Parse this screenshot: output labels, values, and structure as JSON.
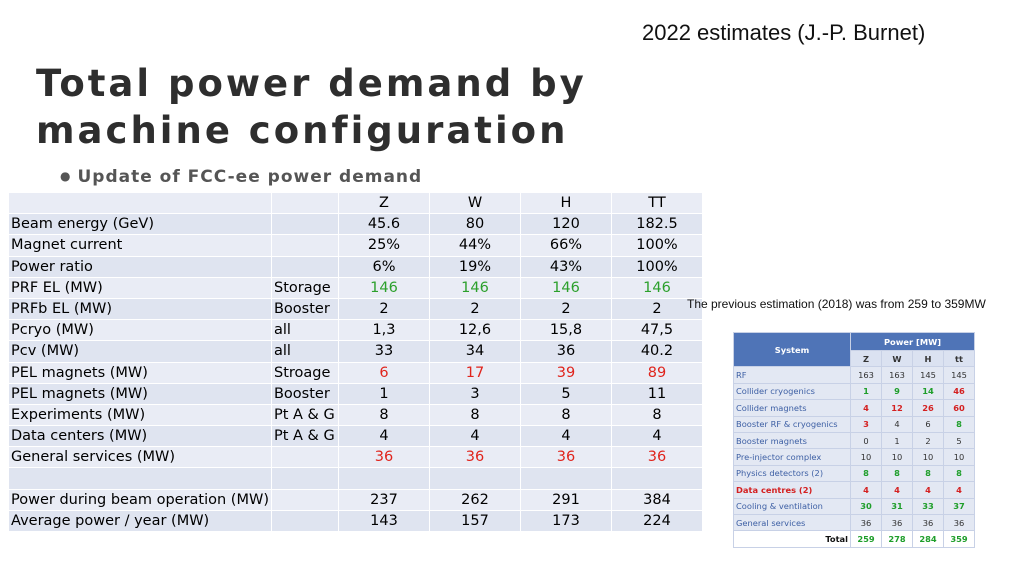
{
  "header_note": "2022 estimates (J.-P. Burnet)",
  "title": "Total power demand by machine configuration",
  "bullet": "Update of FCC-ee power demand",
  "main_table": {
    "columns": [
      "Z",
      "W",
      "H",
      "TT"
    ],
    "rows": [
      {
        "label": "Beam energy (GeV)",
        "sub": "",
        "values": [
          "45.6",
          "80",
          "120",
          "182.5"
        ],
        "color": ""
      },
      {
        "label": "Magnet current",
        "sub": "",
        "values": [
          "25%",
          "44%",
          "66%",
          "100%"
        ],
        "color": ""
      },
      {
        "label": "Power ratio",
        "sub": "",
        "values": [
          "6%",
          "19%",
          "43%",
          "100%"
        ],
        "color": ""
      },
      {
        "label": "PRF EL (MW)",
        "sub": "Storage",
        "values": [
          "146",
          "146",
          "146",
          "146"
        ],
        "color": "green"
      },
      {
        "label": "PRFb EL (MW)",
        "sub": "Booster",
        "values": [
          "2",
          "2",
          "2",
          "2"
        ],
        "color": ""
      },
      {
        "label": "Pcryo (MW)",
        "sub": "all",
        "values": [
          "1,3",
          "12,6",
          "15,8",
          "47,5"
        ],
        "color": ""
      },
      {
        "label": "Pcv (MW)",
        "sub": "all",
        "values": [
          "33",
          "34",
          "36",
          "40.2"
        ],
        "color": ""
      },
      {
        "label": "PEL magnets (MW)",
        "sub": "Stroage",
        "values": [
          "6",
          "17",
          "39",
          "89"
        ],
        "color": "red"
      },
      {
        "label": "PEL magnets (MW)",
        "sub": "Booster",
        "values": [
          "1",
          "3",
          "5",
          "11"
        ],
        "color": ""
      },
      {
        "label": "Experiments (MW)",
        "sub": "Pt A & G",
        "values": [
          "8",
          "8",
          "8",
          "8"
        ],
        "color": ""
      },
      {
        "label": "Data centers (MW)",
        "sub": "Pt A & G",
        "values": [
          "4",
          "4",
          "4",
          "4"
        ],
        "color": ""
      },
      {
        "label": "General services (MW)",
        "sub": "",
        "values": [
          "36",
          "36",
          "36",
          "36"
        ],
        "color": "red"
      },
      {
        "label": "",
        "sub": "",
        "values": [
          "",
          "",
          "",
          ""
        ],
        "color": ""
      },
      {
        "label": "Power during beam operation (MW)",
        "sub": "",
        "values": [
          "237",
          "262",
          "291",
          "384"
        ],
        "color": ""
      },
      {
        "label": "Average power / year (MW)",
        "sub": "",
        "values": [
          "143",
          "157",
          "173",
          "224"
        ],
        "color": ""
      }
    ]
  },
  "side_note": "The previous estimation (2018) was from 259 to 359MW",
  "old_table": {
    "system_header": "System",
    "power_header": "Power [MW]",
    "columns": [
      "Z",
      "W",
      "H",
      "tt"
    ],
    "rows": [
      {
        "label": "RF",
        "values": [
          "163",
          "163",
          "145",
          "145"
        ],
        "style": [
          "",
          "",
          "",
          ""
        ]
      },
      {
        "label": "Collider cryogenics",
        "values": [
          "1",
          "9",
          "14",
          "46"
        ],
        "style": [
          "g",
          "g",
          "g",
          "r"
        ]
      },
      {
        "label": "Collider magnets",
        "values": [
          "4",
          "12",
          "26",
          "60"
        ],
        "style": [
          "r",
          "r",
          "r",
          "r"
        ]
      },
      {
        "label": "Booster RF & cryogenics",
        "values": [
          "3",
          "4",
          "6",
          "8"
        ],
        "style": [
          "r",
          "",
          "",
          "g"
        ]
      },
      {
        "label": "Booster magnets",
        "values": [
          "0",
          "1",
          "2",
          "5"
        ],
        "style": [
          "",
          "",
          "",
          ""
        ]
      },
      {
        "label": "Pre-injector complex",
        "values": [
          "10",
          "10",
          "10",
          "10"
        ],
        "style": [
          "",
          "",
          "",
          ""
        ]
      },
      {
        "label": "Physics detectors (2)",
        "values": [
          "8",
          "8",
          "8",
          "8"
        ],
        "style": [
          "g",
          "g",
          "g",
          "g"
        ]
      },
      {
        "label": "Data centres (2)",
        "values": [
          "4",
          "4",
          "4",
          "4"
        ],
        "style": [
          "r",
          "r",
          "r",
          "r"
        ],
        "label_red": true
      },
      {
        "label": "Cooling & ventilation",
        "values": [
          "30",
          "31",
          "33",
          "37"
        ],
        "style": [
          "g",
          "g",
          "g",
          "g"
        ]
      },
      {
        "label": "General services",
        "values": [
          "36",
          "36",
          "36",
          "36"
        ],
        "style": [
          "",
          "",
          "",
          ""
        ]
      }
    ],
    "total_label": "Total",
    "total_values": [
      "259",
      "278",
      "284",
      "359"
    ]
  }
}
